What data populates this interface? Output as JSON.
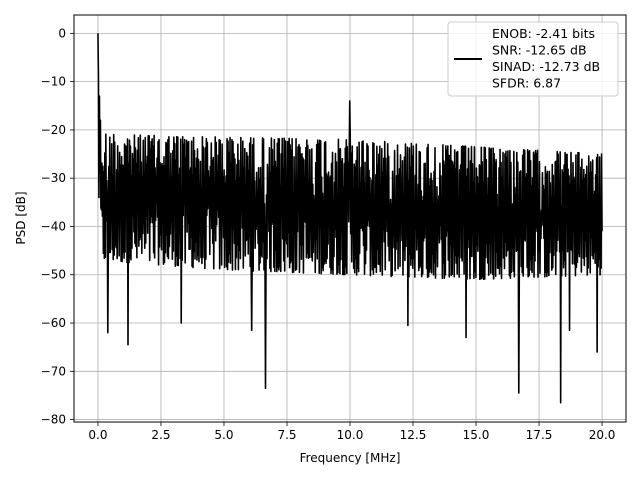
{
  "chart_data": {
    "type": "line",
    "xlabel": "Frequency [MHz]",
    "ylabel": "PSD [dB]",
    "xlim": [
      -0.95,
      20.95
    ],
    "ylim": [
      -80.5,
      3.8
    ],
    "xticks": [
      0.0,
      2.5,
      5.0,
      7.5,
      10.0,
      12.5,
      15.0,
      17.5,
      20.0
    ],
    "xtick_labels": [
      "0.0",
      "2.5",
      "5.0",
      "7.5",
      "10.0",
      "12.5",
      "15.0",
      "17.5",
      "20.0"
    ],
    "yticks": [
      0,
      -10,
      -20,
      -30,
      -40,
      -50,
      -60,
      -70,
      -80
    ],
    "ytick_labels": [
      "0",
      "−10",
      "−20",
      "−30",
      "−40",
      "−50",
      "−60",
      "−70",
      "−80"
    ],
    "grid": true,
    "legend_position": "top-right",
    "series": [
      {
        "name": "ENOB: -2.41 bits\nSNR: -12.65 dB\nSINAD: -12.73 dB\nSFDR: 6.87",
        "color": "#000000",
        "x_range": [
          0.0,
          20.0
        ],
        "num_points": 1024,
        "peaks": [
          {
            "x": 0.0,
            "y": 0.0
          },
          {
            "x": 10.0,
            "y": -14.0
          }
        ],
        "upper_envelope": [
          [
            0.02,
            -20
          ],
          [
            1.0,
            -21
          ],
          [
            5.0,
            -21.5
          ],
          [
            10.0,
            -22
          ],
          [
            15.0,
            -23.5
          ],
          [
            20.0,
            -25
          ]
        ],
        "lower_envelope": [
          [
            0.02,
            -47
          ],
          [
            5.0,
            -49
          ],
          [
            10.0,
            -50
          ],
          [
            15.0,
            -51
          ],
          [
            20.0,
            -50
          ]
        ],
        "deep_dips": [
          {
            "x": 0.4,
            "y": -62.0
          },
          {
            "x": 1.2,
            "y": -64.5
          },
          {
            "x": 3.3,
            "y": -60.0
          },
          {
            "x": 6.1,
            "y": -61.5
          },
          {
            "x": 6.65,
            "y": -73.5
          },
          {
            "x": 12.3,
            "y": -60.5
          },
          {
            "x": 14.6,
            "y": -63.0
          },
          {
            "x": 16.7,
            "y": -74.5
          },
          {
            "x": 18.35,
            "y": -76.5
          },
          {
            "x": 18.7,
            "y": -61.5
          },
          {
            "x": 19.8,
            "y": -66.0
          }
        ]
      }
    ]
  }
}
